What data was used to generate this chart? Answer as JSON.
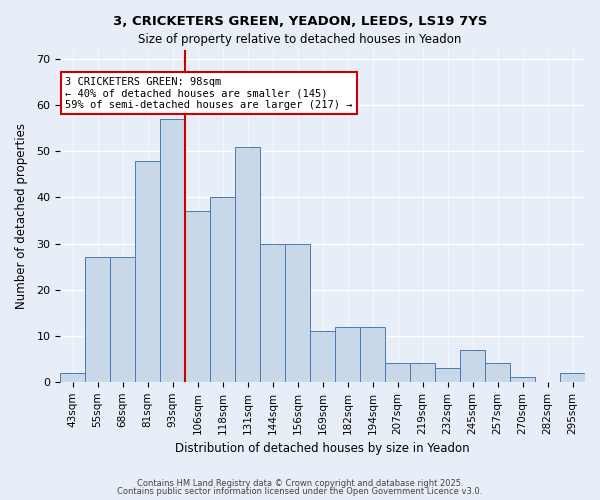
{
  "title1": "3, CRICKETERS GREEN, YEADON, LEEDS, LS19 7YS",
  "title2": "Size of property relative to detached houses in Yeadon",
  "xlabel": "Distribution of detached houses by size in Yeadon",
  "ylabel": "Number of detached properties",
  "categories": [
    "43sqm",
    "55sqm",
    "68sqm",
    "81sqm",
    "93sqm",
    "106sqm",
    "118sqm",
    "131sqm",
    "144sqm",
    "156sqm",
    "169sqm",
    "182sqm",
    "194sqm",
    "207sqm",
    "219sqm",
    "232sqm",
    "245sqm",
    "257sqm",
    "270sqm",
    "282sqm",
    "295sqm"
  ],
  "values": [
    2,
    27,
    27,
    48,
    57,
    37,
    40,
    51,
    30,
    30,
    11,
    12,
    12,
    4,
    4,
    3,
    7,
    4,
    1,
    0,
    2
  ],
  "bar_color": "#c8d8e8",
  "bar_edge_color": "#4a7ab5",
  "background_color": "#e8eef8",
  "grid_color": "#ffffff",
  "redline_x": 4.5,
  "annotation_text": "3 CRICKETERS GREEN: 98sqm\n← 40% of detached houses are smaller (145)\n59% of semi-detached houses are larger (217) →",
  "annotation_box_color": "#ffffff",
  "annotation_box_edge": "#cc0000",
  "redline_color": "#cc0000",
  "ylim": [
    0,
    72
  ],
  "yticks": [
    0,
    10,
    20,
    30,
    40,
    50,
    60,
    70
  ],
  "footer1": "Contains HM Land Registry data © Crown copyright and database right 2025.",
  "footer2": "Contains public sector information licensed under the Open Government Licence v3.0."
}
